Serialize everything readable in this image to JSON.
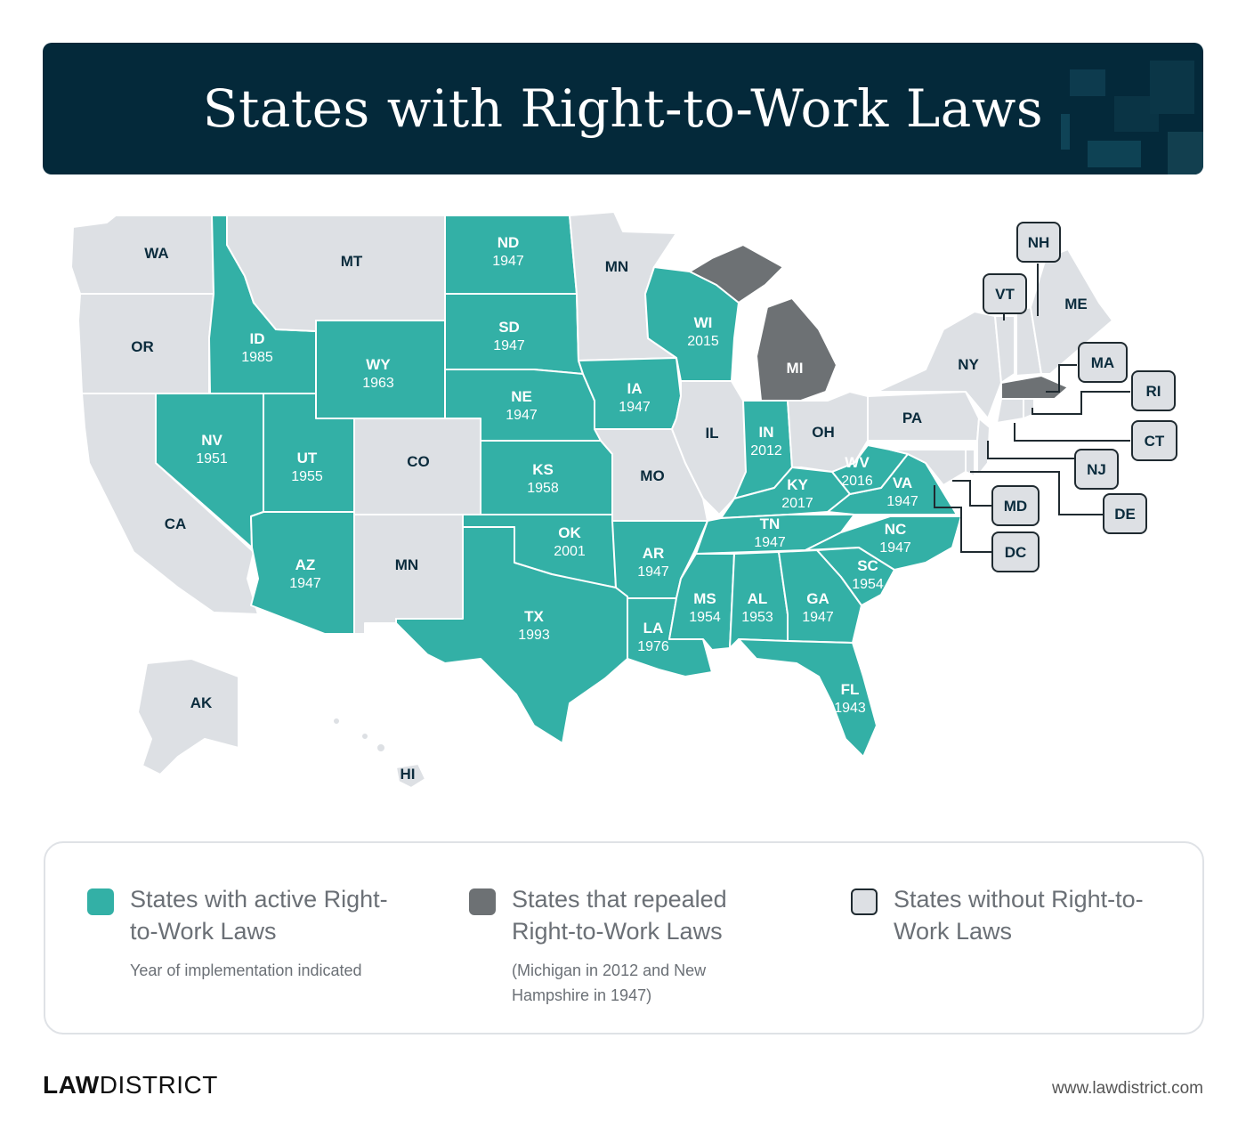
{
  "title": "States with Right-to-Work Laws",
  "colors": {
    "active": "#33b0a6",
    "repealed": "#6d7174",
    "none": "#dde0e4",
    "header_bg": "#04293a",
    "label_dark": "#0b2c3d"
  },
  "states": [
    {
      "abbr": "WA",
      "status": "none"
    },
    {
      "abbr": "OR",
      "status": "none"
    },
    {
      "abbr": "CA",
      "status": "none"
    },
    {
      "abbr": "ID",
      "status": "active",
      "year": "1985"
    },
    {
      "abbr": "NV",
      "status": "active",
      "year": "1951"
    },
    {
      "abbr": "MT",
      "status": "none"
    },
    {
      "abbr": "WY",
      "status": "active",
      "year": "1963"
    },
    {
      "abbr": "UT",
      "status": "active",
      "year": "1955"
    },
    {
      "abbr": "AZ",
      "status": "active",
      "year": "1947"
    },
    {
      "abbr": "CO",
      "status": "none"
    },
    {
      "abbr": "MN",
      "status": "none",
      "note": "label as printed over New Mexico"
    },
    {
      "abbr": "ND",
      "status": "active",
      "year": "1947"
    },
    {
      "abbr": "SD",
      "status": "active",
      "year": "1947"
    },
    {
      "abbr": "NE",
      "status": "active",
      "year": "1947"
    },
    {
      "abbr": "KS",
      "status": "active",
      "year": "1958"
    },
    {
      "abbr": "OK",
      "status": "active",
      "year": "2001"
    },
    {
      "abbr": "TX",
      "status": "active",
      "year": "1993"
    },
    {
      "abbr": "MN",
      "status": "none"
    },
    {
      "abbr": "IA",
      "status": "active",
      "year": "1947"
    },
    {
      "abbr": "MO",
      "status": "none"
    },
    {
      "abbr": "AR",
      "status": "active",
      "year": "1947"
    },
    {
      "abbr": "LA",
      "status": "active",
      "year": "1976"
    },
    {
      "abbr": "WI",
      "status": "active",
      "year": "2015"
    },
    {
      "abbr": "IL",
      "status": "none"
    },
    {
      "abbr": "MI",
      "status": "repealed"
    },
    {
      "abbr": "IN",
      "status": "active",
      "year": "2012"
    },
    {
      "abbr": "OH",
      "status": "none"
    },
    {
      "abbr": "KY",
      "status": "active",
      "year": "2017"
    },
    {
      "abbr": "TN",
      "status": "active",
      "year": "1947"
    },
    {
      "abbr": "MS",
      "status": "active",
      "year": "1954"
    },
    {
      "abbr": "AL",
      "status": "active",
      "year": "1953"
    },
    {
      "abbr": "GA",
      "status": "active",
      "year": "1947"
    },
    {
      "abbr": "FL",
      "status": "active",
      "year": "1943"
    },
    {
      "abbr": "SC",
      "status": "active",
      "year": "1954"
    },
    {
      "abbr": "NC",
      "status": "active",
      "year": "1947"
    },
    {
      "abbr": "VA",
      "status": "active",
      "year": "1947"
    },
    {
      "abbr": "WV",
      "status": "active",
      "year": "2016"
    },
    {
      "abbr": "PA",
      "status": "none"
    },
    {
      "abbr": "NY",
      "status": "none"
    },
    {
      "abbr": "ME",
      "status": "none"
    },
    {
      "abbr": "AK",
      "status": "none"
    },
    {
      "abbr": "HI",
      "status": "none"
    },
    {
      "abbr": "NH",
      "status": "repealed"
    },
    {
      "abbr": "VT",
      "status": "none"
    },
    {
      "abbr": "MA",
      "status": "none"
    },
    {
      "abbr": "RI",
      "status": "none"
    },
    {
      "abbr": "CT",
      "status": "none"
    },
    {
      "abbr": "NJ",
      "status": "none"
    },
    {
      "abbr": "DE",
      "status": "none"
    },
    {
      "abbr": "MD",
      "status": "none"
    },
    {
      "abbr": "DC",
      "status": "none"
    }
  ],
  "legend": {
    "active": {
      "title": "States with active Right-to-Work Laws",
      "note": "Year of implementation indicated"
    },
    "repealed": {
      "title": "States that repealed Right-to-Work Laws",
      "note": "(Michigan in 2012 and New Hampshire in 1947)"
    },
    "none": {
      "title": "States without Right-to-Work Laws"
    }
  },
  "footer": {
    "brand_bold": "LAW",
    "brand_rest": "DISTRICT",
    "url": "www.lawdistrict.com"
  }
}
